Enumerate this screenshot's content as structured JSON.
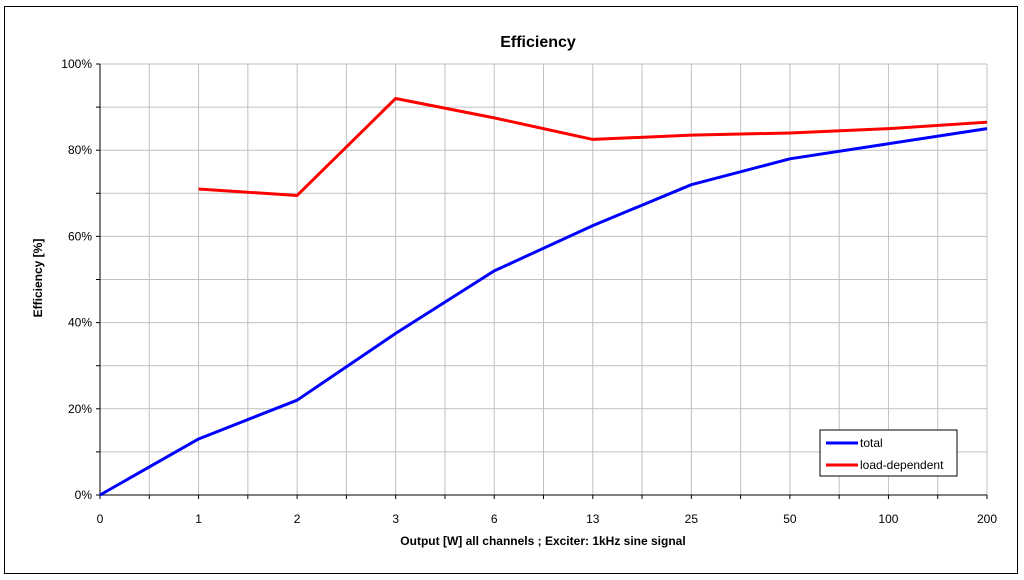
{
  "chart_data": {
    "type": "line",
    "title": "Efficiency",
    "xlabel": "Output [W]  all channels  ;  Exciter: 1kHz sine signal",
    "ylabel": "Efficiency [%]",
    "categories": [
      "0",
      "1",
      "2",
      "3",
      "6",
      "13",
      "25",
      "50",
      "100",
      "200"
    ],
    "y_ticks": [
      "0%",
      "20%",
      "40%",
      "60%",
      "80%",
      "100%"
    ],
    "ylim": [
      0,
      100
    ],
    "grid": true,
    "legend_position": "bottom-right",
    "series": [
      {
        "name": "total",
        "color": "#0000ff",
        "values": [
          0,
          13,
          22,
          37.5,
          52,
          62.5,
          72,
          78,
          81.5,
          85
        ]
      },
      {
        "name": "load-dependent",
        "color": "#ff0000",
        "values": [
          null,
          71,
          69.5,
          92,
          87.5,
          82.5,
          83.5,
          84,
          85,
          86.5
        ]
      }
    ]
  }
}
